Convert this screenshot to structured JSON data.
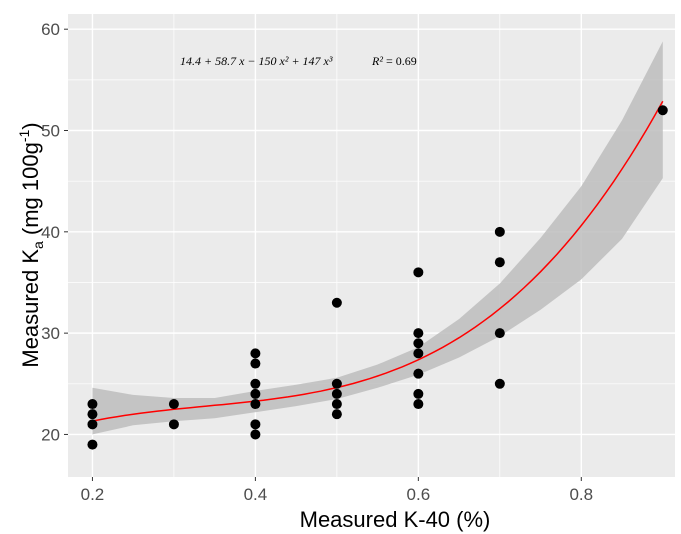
{
  "chart_data": {
    "type": "scatter",
    "title": "",
    "xlabel": "Measured K-40 (%)",
    "ylabel": {
      "prefix": "Measured K",
      "subscript": "a",
      "unit_open": " (mg 100g",
      "superscript": "-1",
      "unit_close": ")"
    },
    "xlim": [
      0.17,
      0.915
    ],
    "ylim": [
      15.8,
      61.5
    ],
    "xticks": [
      0.2,
      0.4,
      0.6,
      0.8
    ],
    "xtick_labels": [
      "0.2",
      "0.4",
      "0.6",
      "0.8"
    ],
    "yticks": [
      20,
      30,
      40,
      50,
      60
    ],
    "ytick_labels": [
      "20",
      "30",
      "40",
      "50",
      "60"
    ],
    "grid": true,
    "background": "#ebebeb",
    "point_color": "#000000",
    "fit_color": "#ff0000",
    "band_color": "#bdbdbd",
    "points": [
      {
        "x": 0.2,
        "y": 23
      },
      {
        "x": 0.2,
        "y": 22
      },
      {
        "x": 0.2,
        "y": 21
      },
      {
        "x": 0.2,
        "y": 19
      },
      {
        "x": 0.3,
        "y": 23
      },
      {
        "x": 0.3,
        "y": 21
      },
      {
        "x": 0.4,
        "y": 28
      },
      {
        "x": 0.4,
        "y": 27
      },
      {
        "x": 0.4,
        "y": 25
      },
      {
        "x": 0.4,
        "y": 24
      },
      {
        "x": 0.4,
        "y": 23
      },
      {
        "x": 0.4,
        "y": 21
      },
      {
        "x": 0.4,
        "y": 20
      },
      {
        "x": 0.5,
        "y": 33
      },
      {
        "x": 0.5,
        "y": 25
      },
      {
        "x": 0.5,
        "y": 24
      },
      {
        "x": 0.5,
        "y": 23
      },
      {
        "x": 0.5,
        "y": 22
      },
      {
        "x": 0.6,
        "y": 36
      },
      {
        "x": 0.6,
        "y": 30
      },
      {
        "x": 0.6,
        "y": 29
      },
      {
        "x": 0.6,
        "y": 28
      },
      {
        "x": 0.6,
        "y": 26
      },
      {
        "x": 0.6,
        "y": 24
      },
      {
        "x": 0.6,
        "y": 23
      },
      {
        "x": 0.7,
        "y": 40
      },
      {
        "x": 0.7,
        "y": 37
      },
      {
        "x": 0.7,
        "y": 30
      },
      {
        "x": 0.7,
        "y": 25
      },
      {
        "x": 0.9,
        "y": 52
      }
    ],
    "fit_coefficients": [
      14.4,
      58.7,
      -150,
      147
    ],
    "fit_range": [
      0.2,
      0.9
    ],
    "confidence_band": [
      {
        "x": 0.2,
        "lower": 20.0,
        "upper": 24.6
      },
      {
        "x": 0.25,
        "lower": 20.9,
        "upper": 23.9
      },
      {
        "x": 0.3,
        "lower": 21.3,
        "upper": 23.6
      },
      {
        "x": 0.35,
        "lower": 21.6,
        "upper": 23.6
      },
      {
        "x": 0.4,
        "lower": 22.2,
        "upper": 24.3
      },
      {
        "x": 0.45,
        "lower": 22.8,
        "upper": 24.9
      },
      {
        "x": 0.5,
        "lower": 23.5,
        "upper": 25.6
      },
      {
        "x": 0.55,
        "lower": 24.6,
        "upper": 26.9
      },
      {
        "x": 0.6,
        "lower": 25.9,
        "upper": 28.6
      },
      {
        "x": 0.65,
        "lower": 27.6,
        "upper": 31.4
      },
      {
        "x": 0.7,
        "lower": 29.7,
        "upper": 34.9
      },
      {
        "x": 0.75,
        "lower": 32.3,
        "upper": 39.4
      },
      {
        "x": 0.8,
        "lower": 35.3,
        "upper": 44.5
      },
      {
        "x": 0.85,
        "lower": 39.3,
        "upper": 51.0
      },
      {
        "x": 0.9,
        "lower": 45.3,
        "upper": 58.8
      }
    ],
    "annotation": {
      "equation": "14.4 + 58.7 x − 150 x² + 147 x³",
      "r2_symbol": "R²",
      "r2_sep": " = ",
      "r2_value": "0.69"
    }
  }
}
